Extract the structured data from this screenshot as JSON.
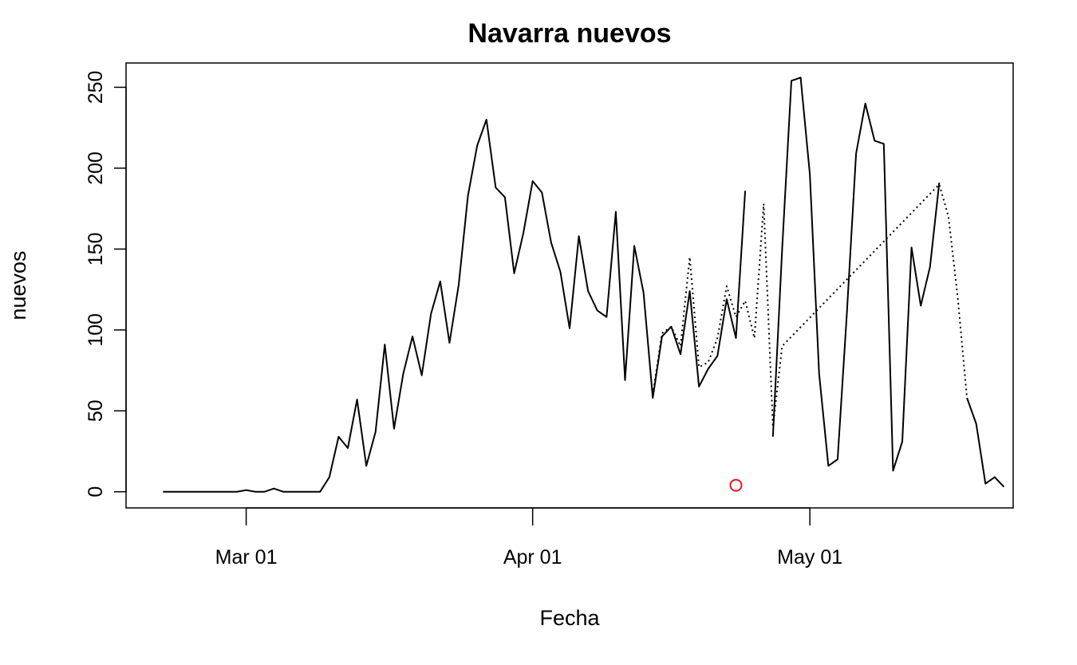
{
  "chart_data": {
    "type": "line",
    "title": "Navarra nuevos",
    "xlabel": "Fecha",
    "ylabel": "nuevos",
    "x_range": [
      "2020-02-17",
      "2020-05-23"
    ],
    "ylim": [
      -10,
      265
    ],
    "x_ticks": [
      {
        "date": "2020-03-01",
        "label": "Mar 01"
      },
      {
        "date": "2020-04-01",
        "label": "Apr 01"
      },
      {
        "date": "2020-05-01",
        "label": "May 01"
      }
    ],
    "y_ticks": [
      0,
      50,
      100,
      150,
      200,
      250
    ],
    "grid": false,
    "colors": {
      "line": "#000000",
      "marker": "#e8141b"
    },
    "series": [
      {
        "style": "solid",
        "x": [
          "2020-02-21",
          "2020-02-22",
          "2020-02-23",
          "2020-02-24",
          "2020-02-25",
          "2020-02-26",
          "2020-02-27",
          "2020-02-28",
          "2020-02-29",
          "2020-03-01",
          "2020-03-02",
          "2020-03-03",
          "2020-03-04",
          "2020-03-05",
          "2020-03-06",
          "2020-03-07",
          "2020-03-08",
          "2020-03-09",
          "2020-03-10",
          "2020-03-11",
          "2020-03-12",
          "2020-03-13",
          "2020-03-14",
          "2020-03-15",
          "2020-03-16",
          "2020-03-17",
          "2020-03-18",
          "2020-03-19",
          "2020-03-20",
          "2020-03-21",
          "2020-03-22",
          "2020-03-23",
          "2020-03-24",
          "2020-03-25",
          "2020-03-26",
          "2020-03-27",
          "2020-03-28",
          "2020-03-29",
          "2020-03-30",
          "2020-03-31",
          "2020-04-01",
          "2020-04-02",
          "2020-04-03",
          "2020-04-04",
          "2020-04-05",
          "2020-04-06",
          "2020-04-07",
          "2020-04-08",
          "2020-04-09",
          "2020-04-10",
          "2020-04-11",
          "2020-04-12",
          "2020-04-13",
          "2020-04-14",
          "2020-04-15",
          "2020-04-16",
          "2020-04-17",
          "2020-04-18",
          "2020-04-19",
          "2020-04-20",
          "2020-04-21",
          "2020-04-22",
          "2020-04-23",
          "2020-04-24",
          "2020-04-25",
          "2020-04-26",
          "2020-04-27",
          "2020-04-28",
          "2020-04-29",
          "2020-04-30",
          "2020-05-01",
          "2020-05-02",
          "2020-05-03",
          "2020-05-04",
          "2020-05-05",
          "2020-05-06",
          "2020-05-07",
          "2020-05-08",
          "2020-05-09",
          "2020-05-10",
          "2020-05-11",
          "2020-05-12",
          "2020-05-13",
          "2020-05-14",
          "2020-05-15",
          "2020-05-16",
          "2020-05-17",
          "2020-05-18",
          "2020-05-19",
          "2020-05-20",
          "2020-05-21",
          "2020-05-22"
        ],
        "y": [
          0,
          0,
          0,
          0,
          0,
          0,
          0,
          0,
          0,
          1,
          0,
          0,
          2,
          0,
          0,
          0,
          0,
          0,
          9,
          34,
          27,
          57,
          16,
          37,
          91,
          39,
          73,
          96,
          72,
          110,
          130,
          92,
          128,
          183,
          214,
          230,
          188,
          182,
          135,
          160,
          192,
          185,
          154,
          136,
          101,
          158,
          124,
          112,
          108,
          173,
          69,
          152,
          123,
          58,
          96,
          102,
          85,
          124,
          65,
          76,
          84,
          119,
          95,
          186,
          null,
          null,
          34,
          150,
          254,
          256,
          196,
          73,
          16,
          20,
          110,
          209,
          240,
          217,
          215,
          13,
          31,
          151,
          115,
          139,
          191,
          null,
          null,
          58,
          42,
          5,
          9,
          3
        ]
      },
      {
        "style": "dotted",
        "x": [
          "2020-04-14",
          "2020-04-15",
          "2020-04-16",
          "2020-04-17",
          "2020-04-18",
          "2020-04-19",
          "2020-04-20",
          "2020-04-21",
          "2020-04-22",
          "2020-04-23",
          "2020-04-24",
          "2020-04-25",
          "2020-04-26",
          "2020-04-27",
          "2020-04-28",
          "2020-05-15",
          "2020-05-16",
          "2020-05-17",
          "2020-05-18"
        ],
        "y": [
          60,
          98,
          102,
          90,
          145,
          77,
          80,
          95,
          127,
          108,
          118,
          95,
          178,
          40,
          90,
          190,
          170,
          120,
          58
        ]
      },
      {
        "style": "points",
        "x": [
          "2020-04-23"
        ],
        "y": [
          4
        ]
      }
    ]
  }
}
